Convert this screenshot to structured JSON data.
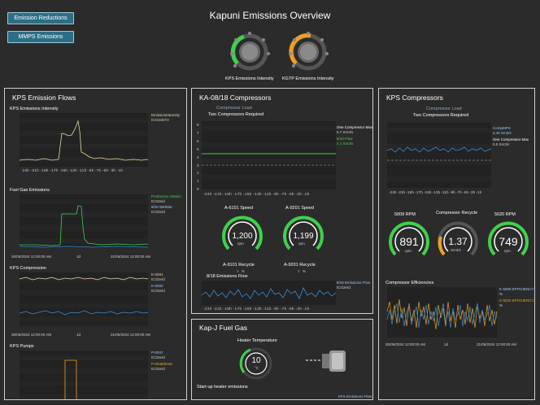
{
  "nav": {
    "emission_reductions": "Emission Reductions",
    "mmps_emissions": "MMPS Emissions"
  },
  "page_title": "Kapuni Emissions Overview",
  "top_gauges": [
    {
      "label": "KPS Emissions Intensity"
    },
    {
      "label": "KGTP Emissions Intensity"
    }
  ],
  "kps_emission_flows": {
    "title": "KPS Emission Flows",
    "charts": [
      {
        "title": "KPS Emissions Intensity",
        "legend": [
          "EmissionIntensity",
          "tCO2e/kT2"
        ]
      },
      {
        "title": "Fuel Gas Emissions",
        "legend": [
          "Production Station",
          "tCO2e/d",
          "8/18 Wellsite",
          "tCO2e/d"
        ]
      },
      {
        "title": "KPS Compression",
        "legend": [
          "K-0201",
          "tCO2e/d",
          "K-0202",
          "tCO2e/d"
        ]
      },
      {
        "title": "KPS Pumps",
        "legend": [
          "P-0047",
          "tCO2e/d",
          "P-0048/0049",
          "tCO2e/d"
        ]
      }
    ],
    "x_ticks": [
      "-23h",
      "-21h",
      "-19h",
      "-17h",
      "-15h",
      "-13h",
      "-11h",
      "-9h",
      "-7h",
      "-5h",
      "-3h",
      "-1h"
    ],
    "date_range": [
      "30/05/2024 12:00:00 AM",
      "1d",
      "31/05/2024 12:00:00 AM"
    ]
  },
  "ka_compressors": {
    "title": "KA-08/18 Compressors",
    "chart_title_1": "Compressor Load",
    "chart_title_2": "Two Compressors Required",
    "legend": [
      "One Compressor Max",
      "5.7 Sm3/s",
      "8/18 Flow",
      "4.1 Sm3/s"
    ],
    "y_ticks": [
      "8",
      "7",
      "6",
      "5",
      "4",
      "3",
      "2",
      "1",
      "0"
    ],
    "x_ticks": [
      "-23h",
      "-21h",
      "-19h",
      "-17h",
      "-15h",
      "-13h",
      "-11h",
      "-9h",
      "-7h",
      "-5h",
      "-3h",
      "-1h"
    ],
    "speed_a": {
      "label": "A-6101 Speed",
      "value": "1,200",
      "unit": "rpm"
    },
    "speed_b": {
      "label": "A-9201 Speed",
      "value": "1,199",
      "unit": "rpm"
    },
    "recycle_a": {
      "label": "A-9101 Recycle",
      "value": "0",
      "unit": "%"
    },
    "recycle_b": {
      "label": "A-9201 Recycle",
      "value": "0",
      "unit": "%"
    },
    "flow_title": "8/18 Emissions Flow",
    "flow_legend": [
      "8/18 Emissions Flow",
      "tCO2e/d"
    ]
  },
  "kps_compressors": {
    "title": "KPS Compressors",
    "chart_title_1": "Compressor Load",
    "chart_title_2": "Two Compressors Required",
    "legend": [
      "CompMPS",
      "4.46 Sm3/s",
      "One Compressor Max",
      "5.5 Sm3/s"
    ],
    "rpm_a": {
      "label": "5009 RPM",
      "value": "891",
      "unit": "rpm"
    },
    "recycle": {
      "label": "Compressor Recycle",
      "value": "1.37",
      "unit": "Sm3/s"
    },
    "rpm_b": {
      "label": "5020 RPM",
      "value": "749",
      "unit": "rpm"
    },
    "eff_title": "Compressor Efficiencies",
    "eff_legend": [
      "K-5009 EFFICIENCY",
      "%",
      "K-5020 EFFICIENCY",
      "%"
    ],
    "date_range": [
      "30/05/2024 12:00:00 AM",
      "1d",
      "31/05/2024 12:00:00 AM"
    ]
  },
  "kapj_fuel_gas": {
    "title": "Kap-J Fuel Gas",
    "heater_label": "Heater Temperature",
    "heater_value": "10",
    "heater_unit": "°C",
    "startup_label": "Start-up heater emissions",
    "legend": "KFS Emissions Flow"
  },
  "colors": {
    "background": "#2b2b2b",
    "green": "#3fd14a",
    "orange": "#f0a020",
    "blue": "#3a8fd8",
    "cream": "#e8d9a0",
    "nav": "#2c6e86"
  }
}
